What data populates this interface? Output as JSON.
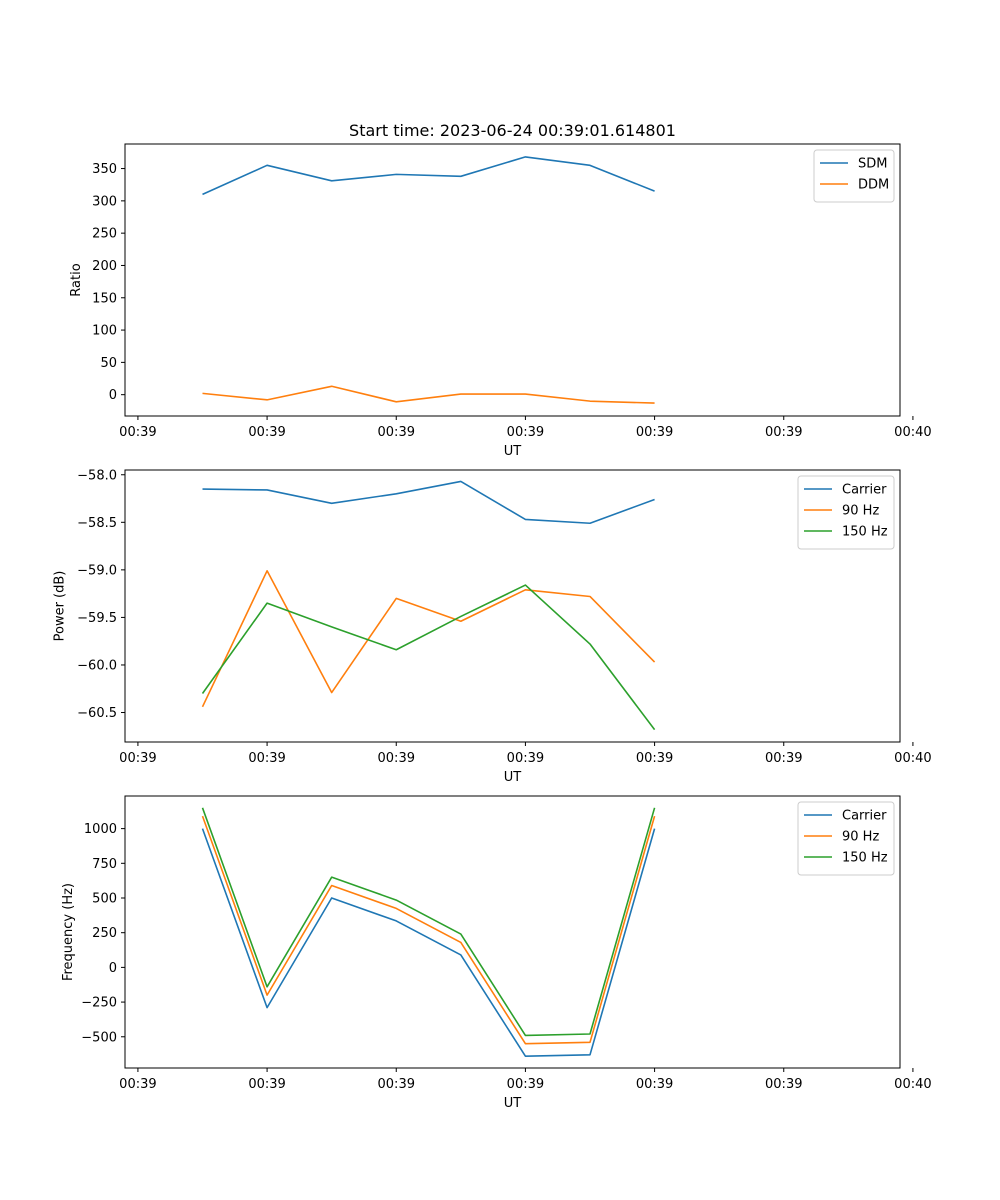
{
  "chart_data": [
    {
      "type": "line",
      "title": "Start time: 2023-06-24 00:39:01.614801",
      "xlabel": "UT",
      "ylabel": "Ratio",
      "x": [
        0.5,
        1.0,
        1.5,
        2.0,
        2.5,
        3.0,
        3.5,
        4.0
      ],
      "xlim": [
        -0.1,
        5.9
      ],
      "x_ticks": [
        0,
        1,
        2,
        3,
        4,
        5,
        6
      ],
      "x_tick_labels": [
        "00:39",
        "00:39",
        "00:39",
        "00:39",
        "00:39",
        "00:39",
        "00:40"
      ],
      "ylim": [
        -33,
        388
      ],
      "y_ticks": [
        0,
        50,
        100,
        150,
        200,
        250,
        300,
        350
      ],
      "y_tick_labels": [
        "0",
        "50",
        "100",
        "150",
        "200",
        "250",
        "300",
        "350"
      ],
      "legend_position": "top-right",
      "grid": false,
      "series": [
        {
          "name": "SDM",
          "color": "#1f77b4",
          "values": [
            310,
            355,
            331,
            341,
            338,
            368,
            355,
            315
          ]
        },
        {
          "name": "DDM",
          "color": "#ff7f0e",
          "values": [
            2,
            -8,
            13,
            -11,
            1,
            1,
            -10,
            -13
          ]
        }
      ]
    },
    {
      "type": "line",
      "title": "",
      "xlabel": "UT",
      "ylabel": "Power (dB)",
      "x": [
        0.5,
        1.0,
        1.5,
        2.0,
        2.5,
        3.0,
        3.5,
        4.0
      ],
      "xlim": [
        -0.1,
        5.9
      ],
      "x_ticks": [
        0,
        1,
        2,
        3,
        4,
        5,
        6
      ],
      "x_tick_labels": [
        "00:39",
        "00:39",
        "00:39",
        "00:39",
        "00:39",
        "00:39",
        "00:40"
      ],
      "ylim": [
        -60.81,
        -57.95
      ],
      "y_ticks": [
        -60.5,
        -60.0,
        -59.5,
        -59.0,
        -58.5,
        -58.0
      ],
      "y_tick_labels": [
        "−60.5",
        "−60.0",
        "−59.5",
        "−59.0",
        "−58.5",
        "−58.0"
      ],
      "legend_position": "top-right",
      "grid": false,
      "series": [
        {
          "name": "Carrier",
          "color": "#1f77b4",
          "values": [
            -58.15,
            -58.16,
            -58.3,
            -58.2,
            -58.07,
            -58.47,
            -58.51,
            -58.26
          ]
        },
        {
          "name": "90 Hz",
          "color": "#ff7f0e",
          "values": [
            -60.44,
            -59.01,
            -60.29,
            -59.3,
            -59.54,
            -59.21,
            -59.28,
            -59.97
          ]
        },
        {
          "name": "150 Hz",
          "color": "#2ca02c",
          "values": [
            -60.3,
            -59.35,
            -59.6,
            -59.84,
            -59.49,
            -59.16,
            -59.78,
            -60.68
          ]
        }
      ]
    },
    {
      "type": "line",
      "title": "",
      "xlabel": "UT",
      "ylabel": "Frequency (Hz)",
      "x": [
        0.5,
        1.0,
        1.5,
        2.0,
        2.5,
        3.0,
        3.5,
        4.0
      ],
      "xlim": [
        -0.1,
        5.9
      ],
      "x_ticks": [
        0,
        1,
        2,
        3,
        4,
        5,
        6
      ],
      "x_tick_labels": [
        "00:39",
        "00:39",
        "00:39",
        "00:39",
        "00:39",
        "00:39",
        "00:40"
      ],
      "ylim": [
        -725,
        1235
      ],
      "y_ticks": [
        -500,
        -250,
        0,
        250,
        500,
        750,
        1000
      ],
      "y_tick_labels": [
        "−500",
        "−250",
        "0",
        "250",
        "500",
        "750",
        "1000"
      ],
      "legend_position": "top-right",
      "grid": false,
      "series": [
        {
          "name": "Carrier",
          "color": "#1f77b4",
          "values": [
            1000,
            -290,
            500,
            335,
            90,
            -640,
            -630,
            1000
          ]
        },
        {
          "name": "90 Hz",
          "color": "#ff7f0e",
          "values": [
            1090,
            -200,
            590,
            425,
            180,
            -550,
            -540,
            1090
          ]
        },
        {
          "name": "150 Hz",
          "color": "#2ca02c",
          "values": [
            1150,
            -140,
            650,
            485,
            240,
            -490,
            -480,
            1150
          ]
        }
      ]
    }
  ]
}
